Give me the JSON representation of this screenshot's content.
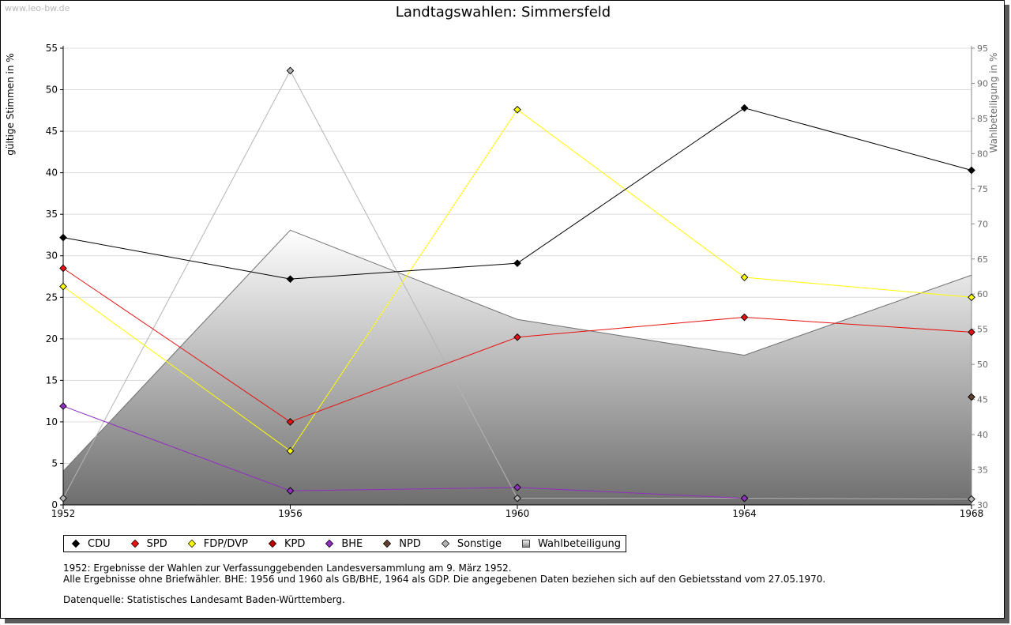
{
  "watermark": "www.leo-bw.de",
  "chart_data": {
    "type": "line",
    "title": "Landtagswahlen: Simmersfeld",
    "ylabel": "gültige Stimmen in %",
    "y2label": "Wahlbeteiligung in %",
    "x": [
      "1952",
      "1956",
      "1960",
      "1964",
      "1968"
    ],
    "ylim": [
      0,
      55
    ],
    "y2lim": [
      30,
      95
    ],
    "yticks": [
      0,
      5,
      10,
      15,
      20,
      25,
      30,
      35,
      40,
      45,
      50,
      55
    ],
    "y2ticks": [
      30,
      35,
      40,
      45,
      50,
      55,
      60,
      65,
      70,
      75,
      80,
      85,
      90,
      95
    ],
    "grid": true,
    "series": [
      {
        "name": "CDU",
        "color": "#000000",
        "values": [
          32.2,
          27.2,
          29.1,
          47.8,
          40.3
        ]
      },
      {
        "name": "SPD",
        "color": "#e81010",
        "values": [
          28.5,
          10.0,
          20.2,
          22.6,
          20.8
        ]
      },
      {
        "name": "FDP/DVP",
        "color": "#ffff00",
        "values": [
          26.3,
          6.5,
          47.6,
          27.4,
          25.0
        ]
      },
      {
        "name": "KPD",
        "color": "#c00000",
        "values": [
          null,
          null,
          null,
          null,
          null
        ]
      },
      {
        "name": "BHE",
        "color": "#9030c0",
        "values": [
          11.9,
          1.7,
          2.1,
          0.8,
          null
        ]
      },
      {
        "name": "NPD",
        "color": "#604030",
        "values": [
          null,
          null,
          null,
          null,
          13.0
        ]
      },
      {
        "name": "Sonstige",
        "color": "#b4b4b4",
        "values": [
          0.8,
          52.3,
          0.8,
          0.8,
          0.7
        ]
      }
    ],
    "turnout": {
      "name": "Wahlbeteiligung",
      "axis": "right",
      "values": [
        34.8,
        69.1,
        56.4,
        51.3,
        62.7
      ]
    }
  },
  "notes": {
    "line1": "1952: Ergebnisse der Wahlen zur Verfassunggebenden Landesversammlung am 9. März 1952.",
    "line2": "Alle Ergebnisse ohne Briefwähler. BHE: 1956 und 1960 als GB/BHE, 1964 als GDP. Die angegebenen Daten beziehen sich auf den Gebietsstand vom 27.05.1970.",
    "source": "Datenquelle: Statistisches Landesamt Baden-Württemberg."
  }
}
